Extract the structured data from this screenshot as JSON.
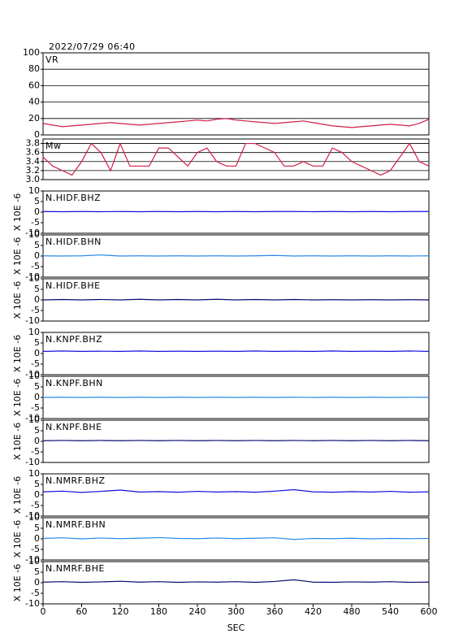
{
  "chart_data": [
    {
      "type": "line",
      "title": "2022/07/29 06:40",
      "label": "VR",
      "color": "#d01e4a",
      "grid": true,
      "xlim": [
        0,
        600
      ],
      "ylim": [
        0,
        100
      ],
      "yticks": [
        0,
        20,
        40,
        60,
        80,
        100
      ],
      "x": [
        0,
        15,
        30,
        45,
        60,
        75,
        90,
        105,
        120,
        135,
        150,
        165,
        180,
        195,
        210,
        225,
        240,
        255,
        270,
        285,
        300,
        315,
        330,
        345,
        360,
        375,
        390,
        405,
        420,
        435,
        450,
        465,
        480,
        495,
        510,
        525,
        540,
        555,
        570,
        585,
        600
      ],
      "values": [
        14,
        12,
        10,
        11,
        12,
        13,
        14,
        15,
        14,
        13,
        12,
        13,
        14,
        15,
        16,
        17,
        18,
        17,
        19,
        20,
        18,
        17,
        16,
        15,
        14,
        15,
        16,
        17,
        15,
        13,
        11,
        10,
        9,
        10,
        11,
        12,
        13,
        12,
        11,
        14,
        19
      ]
    },
    {
      "type": "line",
      "label": "Mw",
      "color": "#d01e4a",
      "grid": true,
      "xlim": [
        0,
        600
      ],
      "ylim": [
        3.0,
        3.9
      ],
      "yticks": [
        {
          "value": 3.0,
          "label": "3.0"
        },
        3.2,
        3.4,
        3.6,
        3.8
      ],
      "x": [
        0,
        15,
        30,
        45,
        60,
        75,
        90,
        105,
        120,
        135,
        150,
        165,
        180,
        195,
        210,
        225,
        240,
        255,
        270,
        285,
        300,
        315,
        330,
        345,
        360,
        375,
        390,
        405,
        420,
        435,
        450,
        465,
        480,
        495,
        510,
        525,
        540,
        555,
        570,
        585,
        600
      ],
      "values": [
        3.5,
        3.3,
        3.2,
        3.1,
        3.4,
        3.8,
        3.6,
        3.2,
        3.8,
        3.3,
        3.3,
        3.3,
        3.7,
        3.7,
        3.5,
        3.3,
        3.6,
        3.7,
        3.4,
        3.3,
        3.3,
        3.8,
        3.8,
        3.7,
        3.6,
        3.3,
        3.3,
        3.4,
        3.3,
        3.3,
        3.7,
        3.6,
        3.4,
        3.3,
        3.2,
        3.1,
        3.2,
        3.5,
        3.8,
        3.4,
        3.3
      ]
    },
    {
      "type": "line",
      "label": "N.HIDF.BHZ",
      "ylabel": "X 10E -6",
      "color": "#1010e0",
      "xlim": [
        0,
        600
      ],
      "ylim": [
        -10,
        10
      ],
      "yticks": [
        -10,
        -5,
        0,
        5,
        10
      ],
      "x": [
        0,
        30,
        60,
        90,
        120,
        150,
        180,
        210,
        240,
        270,
        300,
        330,
        360,
        390,
        420,
        450,
        480,
        510,
        540,
        570,
        600
      ],
      "values": [
        0.3,
        0.2,
        0.3,
        0.2,
        0.3,
        0.2,
        0.3,
        0.2,
        0.3,
        0.2,
        0.3,
        0.2,
        0.3,
        0.3,
        0.2,
        0.3,
        0.2,
        0.3,
        0.2,
        0.3,
        0.3
      ]
    },
    {
      "type": "line",
      "label": "N.HIDF.BHN",
      "ylabel": "X 10E -6",
      "color": "#2a8ae8",
      "xlim": [
        0,
        600
      ],
      "ylim": [
        -10,
        10
      ],
      "yticks": [
        -10,
        -5,
        0,
        5,
        10
      ],
      "x": [
        0,
        30,
        60,
        90,
        120,
        150,
        180,
        210,
        240,
        270,
        300,
        330,
        360,
        390,
        420,
        450,
        480,
        510,
        540,
        570,
        600
      ],
      "values": [
        0.1,
        0,
        0.1,
        0.5,
        0,
        0.1,
        0,
        0.1,
        0,
        0.1,
        0,
        0.1,
        0.3,
        0,
        0.1,
        0,
        0.1,
        0,
        0.1,
        0,
        0.1
      ]
    },
    {
      "type": "line",
      "label": "N.HIDF.BHE",
      "ylabel": "X 10E -6",
      "color": "#0a0a70",
      "xlim": [
        0,
        600
      ],
      "ylim": [
        -10,
        10
      ],
      "yticks": [
        -10,
        -5,
        0,
        5,
        10
      ],
      "x": [
        0,
        30,
        60,
        90,
        120,
        150,
        180,
        210,
        240,
        270,
        300,
        330,
        360,
        390,
        420,
        450,
        480,
        510,
        540,
        570,
        600
      ],
      "values": [
        0,
        0.2,
        0,
        0.2,
        0,
        0.3,
        0,
        0.2,
        0,
        0.3,
        0,
        0.2,
        0,
        0.2,
        0,
        0.1,
        0,
        0.1,
        0,
        0.1,
        0
      ]
    },
    {
      "type": "line",
      "label": "N.KNPF.BHZ",
      "ylabel": "X 10E -6",
      "color": "#1010e0",
      "xlim": [
        0,
        600
      ],
      "ylim": [
        -10,
        10
      ],
      "yticks": [
        -10,
        -5,
        0,
        5,
        10
      ],
      "x": [
        0,
        30,
        60,
        90,
        120,
        150,
        180,
        210,
        240,
        270,
        300,
        330,
        360,
        390,
        420,
        450,
        480,
        510,
        540,
        570,
        600
      ],
      "values": [
        1,
        1.2,
        1,
        1.1,
        1,
        1.2,
        1,
        1.1,
        1,
        1.1,
        1,
        1.2,
        1,
        1.1,
        1,
        1.2,
        1,
        1.1,
        1,
        1.2,
        1
      ]
    },
    {
      "type": "line",
      "label": "N.KNPF.BHN",
      "ylabel": "X 10E -6",
      "color": "#2a8ae8",
      "xlim": [
        0,
        600
      ],
      "ylim": [
        -10,
        10
      ],
      "yticks": [
        -10,
        -5,
        0,
        5,
        10
      ],
      "x": [
        0,
        30,
        60,
        90,
        120,
        150,
        180,
        210,
        240,
        270,
        300,
        330,
        360,
        390,
        420,
        450,
        480,
        510,
        540,
        570,
        600
      ],
      "values": [
        0,
        0.1,
        0,
        0.1,
        0,
        0.1,
        0,
        0.1,
        0,
        0.1,
        0,
        0.1,
        0,
        0.1,
        0,
        0.1,
        0,
        0.1,
        0,
        0.1,
        0
      ]
    },
    {
      "type": "line",
      "label": "N.KNPF.BHE",
      "ylabel": "X 10E -6",
      "color": "#0a0a70",
      "xlim": [
        0,
        600
      ],
      "ylim": [
        -10,
        10
      ],
      "yticks": [
        -10,
        -5,
        0,
        5,
        10
      ],
      "x": [
        0,
        30,
        60,
        90,
        120,
        150,
        180,
        210,
        240,
        270,
        300,
        330,
        360,
        390,
        420,
        450,
        480,
        510,
        540,
        570,
        600
      ],
      "values": [
        0.3,
        0.4,
        0.3,
        0.4,
        0.3,
        0.4,
        0.3,
        0.4,
        0.3,
        0.4,
        0.3,
        0.4,
        0.3,
        0.4,
        0.3,
        0.4,
        0.3,
        0.4,
        0.3,
        0.4,
        0.3
      ]
    },
    {
      "type": "line",
      "label": "N.NMRF.BHZ",
      "ylabel": "X 10E -6",
      "color": "#1010e0",
      "xlim": [
        0,
        600
      ],
      "ylim": [
        -10,
        10
      ],
      "yticks": [
        -10,
        -5,
        0,
        5,
        10
      ],
      "x": [
        0,
        30,
        60,
        90,
        120,
        150,
        180,
        210,
        240,
        270,
        300,
        330,
        360,
        390,
        420,
        450,
        480,
        510,
        540,
        570,
        600
      ],
      "values": [
        1.5,
        1.8,
        1.2,
        1.7,
        2.3,
        1.4,
        1.6,
        1.3,
        1.7,
        1.4,
        1.6,
        1.3,
        1.8,
        2.5,
        1.5,
        1.3,
        1.6,
        1.4,
        1.7,
        1.3,
        1.5
      ]
    },
    {
      "type": "line",
      "label": "N.NMRF.BHN",
      "ylabel": "X 10E -6",
      "color": "#2a8ae8",
      "xlim": [
        0,
        600
      ],
      "ylim": [
        -10,
        10
      ],
      "yticks": [
        -10,
        -5,
        0,
        5,
        10
      ],
      "x": [
        0,
        30,
        60,
        90,
        120,
        150,
        180,
        210,
        240,
        270,
        300,
        330,
        360,
        390,
        420,
        450,
        480,
        510,
        540,
        570,
        600
      ],
      "values": [
        0.2,
        0.5,
        0,
        0.4,
        0.1,
        0.3,
        0.6,
        0.2,
        0.1,
        0.4,
        0.1,
        0.3,
        0.5,
        -0.3,
        0.2,
        0.1,
        0.3,
        0,
        0.2,
        0.1,
        0.2
      ]
    },
    {
      "type": "line",
      "label": "N.NMRF.BHE",
      "ylabel": "X 10E -6",
      "color": "#0a0a70",
      "xlim": [
        0,
        600
      ],
      "ylim": [
        -10,
        10
      ],
      "yticks": [
        -10,
        -5,
        0,
        5,
        10
      ],
      "x": [
        0,
        30,
        60,
        90,
        120,
        150,
        180,
        210,
        240,
        270,
        300,
        330,
        360,
        390,
        420,
        450,
        480,
        510,
        540,
        570,
        600
      ],
      "values": [
        0.3,
        0.5,
        0.2,
        0.4,
        0.7,
        0.3,
        0.5,
        0.2,
        0.4,
        0.3,
        0.5,
        0.2,
        0.6,
        1.4,
        0.3,
        0.2,
        0.4,
        0.3,
        0.5,
        0.2,
        0.3
      ],
      "xlabel": "SEC",
      "xticks": [
        0,
        60,
        120,
        180,
        240,
        300,
        360,
        420,
        480,
        540,
        600
      ]
    }
  ]
}
